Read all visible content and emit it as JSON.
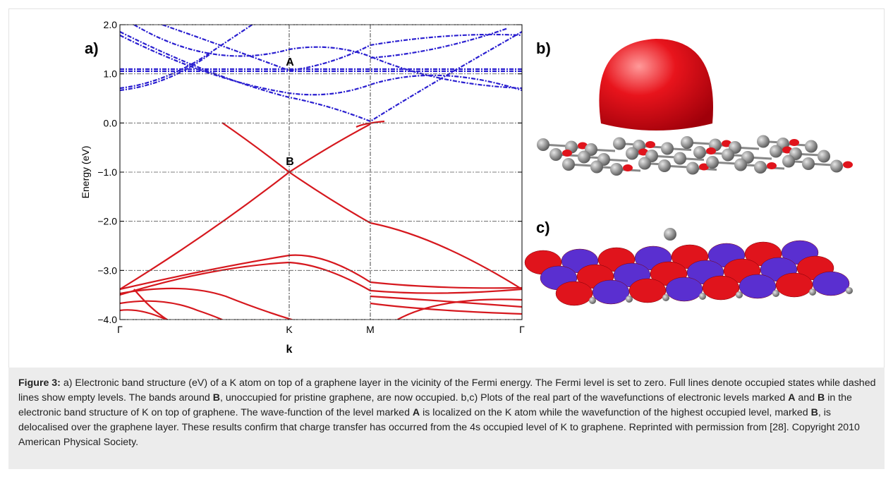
{
  "figure": {
    "band_plot": {
      "panel_label": "a)",
      "ylabel": "Energy (eV)",
      "xlabel": "k",
      "ylim": [
        -4,
        2
      ],
      "yticks": [
        {
          "value": 2,
          "label": "2.0"
        },
        {
          "value": 1,
          "label": "1.0"
        },
        {
          "value": 0,
          "label": "0.0"
        },
        {
          "value": -1,
          "label": "−1.0"
        },
        {
          "value": -2,
          "label": "−2.0"
        },
        {
          "value": -3,
          "label": "−3.0"
        },
        {
          "value": -4,
          "label": "−4.0"
        }
      ],
      "kpoints": [
        "Γ",
        "K",
        "M",
        "Γ"
      ],
      "annotations": [
        "A",
        "B"
      ]
    },
    "panel_labels": [
      "b)",
      "c)"
    ]
  },
  "caption": [
    {
      "text": "Figure 3:",
      "bold": true
    },
    {
      "text": " a) Electronic band structure (eV) of a K atom on top of a graphene layer in the vicinity of the Fermi energy. The Fermi level is set to zero. Full lines denote occupied states while dashed lines show empty levels. The bands around ",
      "bold": false
    },
    {
      "text": "B",
      "bold": true
    },
    {
      "text": ", unoccupied for pristine graphene, are now occupied. b,c) Plots of the real part of the wavefunctions of electronic levels marked ",
      "bold": false
    },
    {
      "text": "A",
      "bold": true
    },
    {
      "text": " and ",
      "bold": false
    },
    {
      "text": "B",
      "bold": true
    },
    {
      "text": " in the electronic band structure of K on top of graphene. The wave-function of the level marked ",
      "bold": false
    },
    {
      "text": "A",
      "bold": true
    },
    {
      "text": " is localized on the K atom while the wavefunction of the highest occupied level, marked ",
      "bold": false
    },
    {
      "text": "B",
      "bold": true
    },
    {
      "text": ", is delocalised over the graphene layer. These results confirm that charge transfer has occurred from the 4s occupied level of K to graphene. Reprinted with permission from [28]. Copyright 2010 American Physical Society.",
      "bold": false
    }
  ]
}
